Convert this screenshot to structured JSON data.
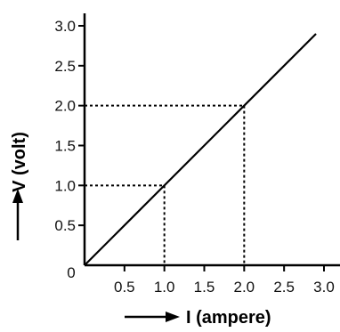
{
  "chart_data": {
    "type": "line",
    "xlabel": "I (ampere)",
    "ylabel": "V (volt)",
    "xlim": [
      0,
      3.0
    ],
    "ylim": [
      0,
      3.0
    ],
    "x_ticks": [
      "0.5",
      "1.0",
      "1.5",
      "2.0",
      "2.5",
      "3.0"
    ],
    "y_ticks": [
      "0.5",
      "1.0",
      "1.5",
      "2.0",
      "2.5",
      "3.0"
    ],
    "origin_label": "0",
    "grid": false,
    "series": [
      {
        "x": [
          0,
          2.9
        ],
        "y": [
          0,
          2.9
        ]
      }
    ],
    "guides": [
      {
        "x": 1.0,
        "y": 1.0
      },
      {
        "x": 2.0,
        "y": 2.0
      }
    ]
  }
}
